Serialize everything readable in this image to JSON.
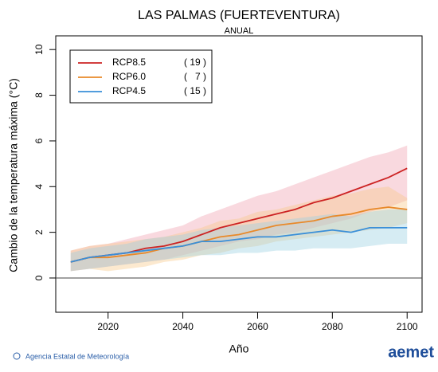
{
  "chart_data": {
    "type": "line",
    "title": "LAS PALMAS (FUERTEVENTURA)",
    "subtitle": "ANUAL",
    "xlabel": "Año",
    "ylabel": "Cambio de la temperatura máxima (°C)",
    "x": [
      2010,
      2015,
      2020,
      2025,
      2030,
      2035,
      2040,
      2045,
      2050,
      2055,
      2060,
      2065,
      2070,
      2075,
      2080,
      2085,
      2090,
      2095,
      2100
    ],
    "xlim": [
      2006,
      2104
    ],
    "xticks": [
      2020,
      2040,
      2060,
      2080,
      2100
    ],
    "ylim": [
      -1.5,
      10.6
    ],
    "yticks": [
      0,
      2,
      4,
      6,
      8,
      10
    ],
    "series": [
      {
        "name": "RCP8.5",
        "count_label": "( 19 )",
        "color": "#cc2222",
        "band_color": "#f0a0b0",
        "values": [
          0.7,
          0.9,
          1.0,
          1.1,
          1.3,
          1.4,
          1.6,
          1.9,
          2.2,
          2.4,
          2.6,
          2.8,
          3.0,
          3.3,
          3.5,
          3.8,
          4.1,
          4.4,
          4.8
        ],
        "upper": [
          1.2,
          1.4,
          1.5,
          1.7,
          1.9,
          2.1,
          2.3,
          2.7,
          3.0,
          3.3,
          3.6,
          3.8,
          4.1,
          4.4,
          4.7,
          5.0,
          5.3,
          5.5,
          5.8
        ],
        "lower": [
          0.3,
          0.4,
          0.5,
          0.6,
          0.7,
          0.8,
          1.0,
          1.2,
          1.4,
          1.6,
          1.7,
          1.9,
          2.0,
          2.2,
          2.4,
          2.6,
          2.9,
          3.1,
          3.4
        ]
      },
      {
        "name": "RCP6.0",
        "count_label": "(   7 )",
        "color": "#e8892a",
        "band_color": "#f8c888",
        "values": [
          0.7,
          0.9,
          0.9,
          1.0,
          1.1,
          1.3,
          1.4,
          1.6,
          1.8,
          1.9,
          2.1,
          2.3,
          2.4,
          2.5,
          2.7,
          2.8,
          3.0,
          3.1,
          3.0
        ],
        "upper": [
          1.2,
          1.4,
          1.5,
          1.6,
          1.7,
          1.8,
          2.0,
          2.2,
          2.5,
          2.6,
          2.9,
          3.0,
          3.2,
          3.4,
          3.6,
          3.7,
          3.9,
          4.0,
          3.5
        ],
        "lower": [
          0.3,
          0.4,
          0.3,
          0.4,
          0.5,
          0.7,
          0.8,
          1.0,
          1.1,
          1.3,
          1.4,
          1.6,
          1.7,
          1.8,
          1.9,
          2.0,
          2.1,
          2.2,
          2.4
        ]
      },
      {
        "name": "RCP4.5",
        "count_label": "( 15 )",
        "color": "#3a8fd8",
        "band_color": "#98d0e0",
        "values": [
          0.7,
          0.9,
          1.0,
          1.1,
          1.2,
          1.3,
          1.4,
          1.6,
          1.6,
          1.7,
          1.8,
          1.8,
          1.9,
          2.0,
          2.1,
          2.0,
          2.2,
          2.2,
          2.2
        ],
        "upper": [
          1.1,
          1.3,
          1.4,
          1.5,
          1.7,
          1.8,
          1.9,
          2.1,
          2.2,
          2.3,
          2.4,
          2.5,
          2.6,
          2.7,
          2.8,
          2.7,
          2.9,
          3.0,
          3.0
        ],
        "lower": [
          0.3,
          0.4,
          0.5,
          0.6,
          0.7,
          0.8,
          0.9,
          1.0,
          1.0,
          1.1,
          1.1,
          1.2,
          1.2,
          1.3,
          1.3,
          1.3,
          1.4,
          1.5,
          1.5
        ]
      }
    ],
    "footer": "Agencia Estatal de Meteorología",
    "logo": "aemet"
  }
}
